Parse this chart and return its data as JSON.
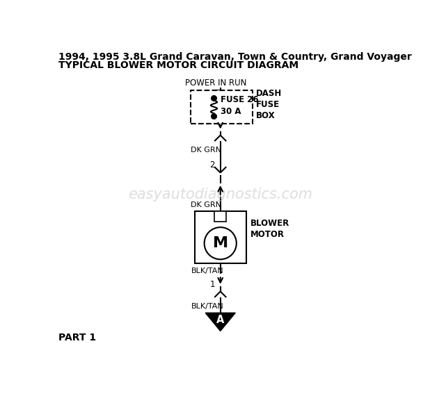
{
  "title_line1": "1994, 1995 3.8L Grand Caravan, Town & Country, Grand Voyager",
  "title_line2": "TYPICAL BLOWER MOTOR CIRCUIT DIAGRAM",
  "bg_color": "#ffffff",
  "line_color": "#000000",
  "watermark": "easyautodiagnostics.com",
  "part_label": "PART 1",
  "power_label": "POWER IN RUN",
  "fuse_label": "FUSE 26\n30 A",
  "dash_fuse_label": "DASH\nFUSE\nBOX",
  "dk_grn_1": "DK GRN",
  "connector2_label": "2",
  "dk_grn_2": "DK GRN",
  "blower_label": "BLOWER\nMOTOR",
  "blk_tan_1": "BLK/TAN",
  "connector1_label": "1",
  "blk_tan_2": "BLK/TAN",
  "ground_label": "A"
}
